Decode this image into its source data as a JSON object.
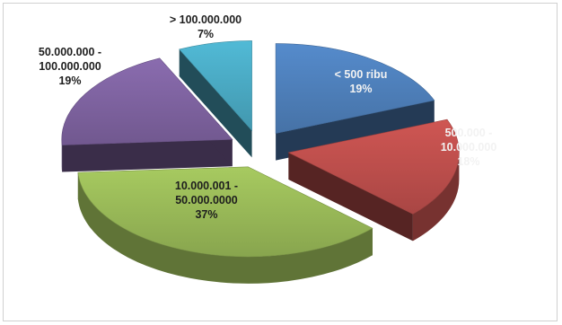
{
  "chart_data": {
    "type": "pie",
    "style": "3d-exploded",
    "title": "",
    "slices": [
      {
        "label_lines": [
          "< 500 ribu",
          "19%"
        ],
        "value": 19,
        "color": "#4f81bd"
      },
      {
        "label_lines": [
          "500.000 -",
          "10.000.000",
          "18%"
        ],
        "value": 18,
        "color": "#c0504d"
      },
      {
        "label_lines": [
          "10.000.001 -",
          "50.000.0000",
          "37%"
        ],
        "value": 37,
        "color": "#9bbb59"
      },
      {
        "label_lines": [
          "50.000.000 -",
          "100.000.000",
          "19%"
        ],
        "value": 19,
        "color": "#8064a2"
      },
      {
        "label_lines": [
          "> 100.000.000",
          "7%"
        ],
        "value": 7,
        "color": "#4bacc6"
      }
    ]
  }
}
